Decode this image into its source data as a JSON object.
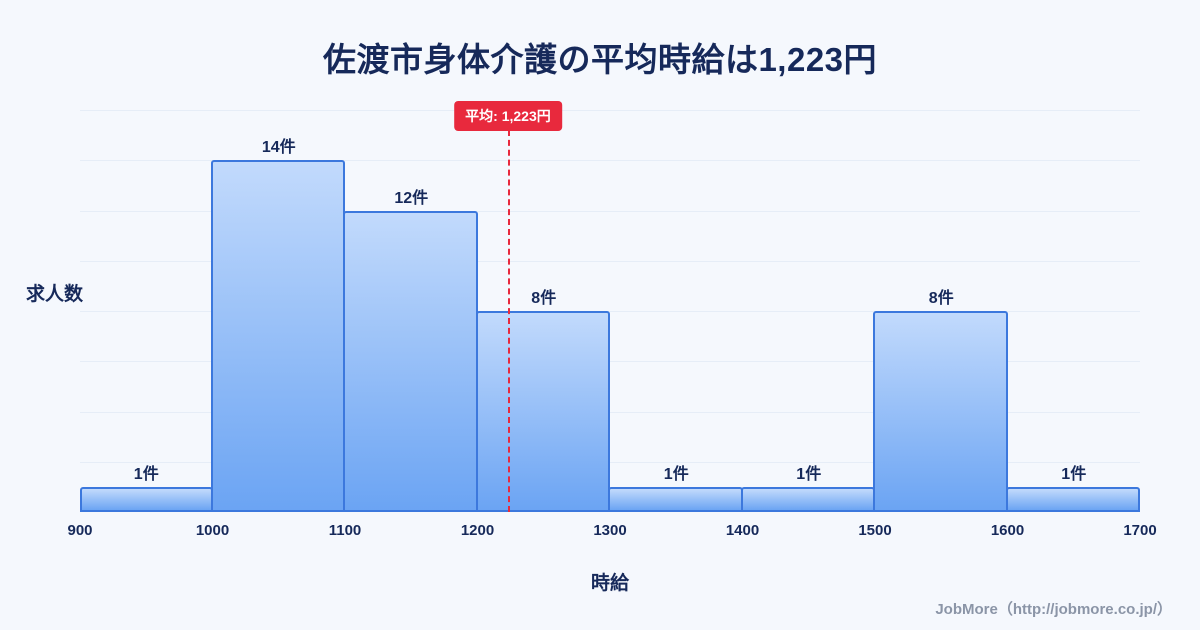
{
  "page": {
    "title": "佐渡市身体介護の平均時給は1,223円",
    "footer": "JobMore（http://jobmore.co.jp/）"
  },
  "chart_data": {
    "type": "bar",
    "subtype": "histogram",
    "title": "佐渡市身体介護の平均時給は1,223円",
    "xlabel": "時給",
    "ylabel": "求人数",
    "bin_edges": [
      900,
      1000,
      1100,
      1200,
      1300,
      1400,
      1500,
      1600,
      1700
    ],
    "x_tick_labels": [
      "900",
      "1000",
      "1100",
      "1200",
      "1300",
      "1400",
      "1500",
      "1600",
      "1700"
    ],
    "values": [
      1,
      14,
      12,
      8,
      1,
      1,
      8,
      1
    ],
    "bar_labels": [
      "1件",
      "14件",
      "12件",
      "8件",
      "1件",
      "1件",
      "8件",
      "1件"
    ],
    "ylim": [
      0,
      16
    ],
    "grid": true,
    "legend": false,
    "mean": {
      "value": 1223,
      "label": "平均: 1,223円"
    },
    "colors": {
      "background": "#f5f8fd",
      "text": "#16295a",
      "grid": "#e6edf7",
      "bar_fill_top": "#c2dafc",
      "bar_fill_bottom": "#6ba4f3",
      "bar_border": "#3c78dd",
      "mean_line": "#e8293d",
      "badge_bg": "#e8293d",
      "badge_text": "#ffffff",
      "footer_text": "#8b95a7"
    }
  }
}
